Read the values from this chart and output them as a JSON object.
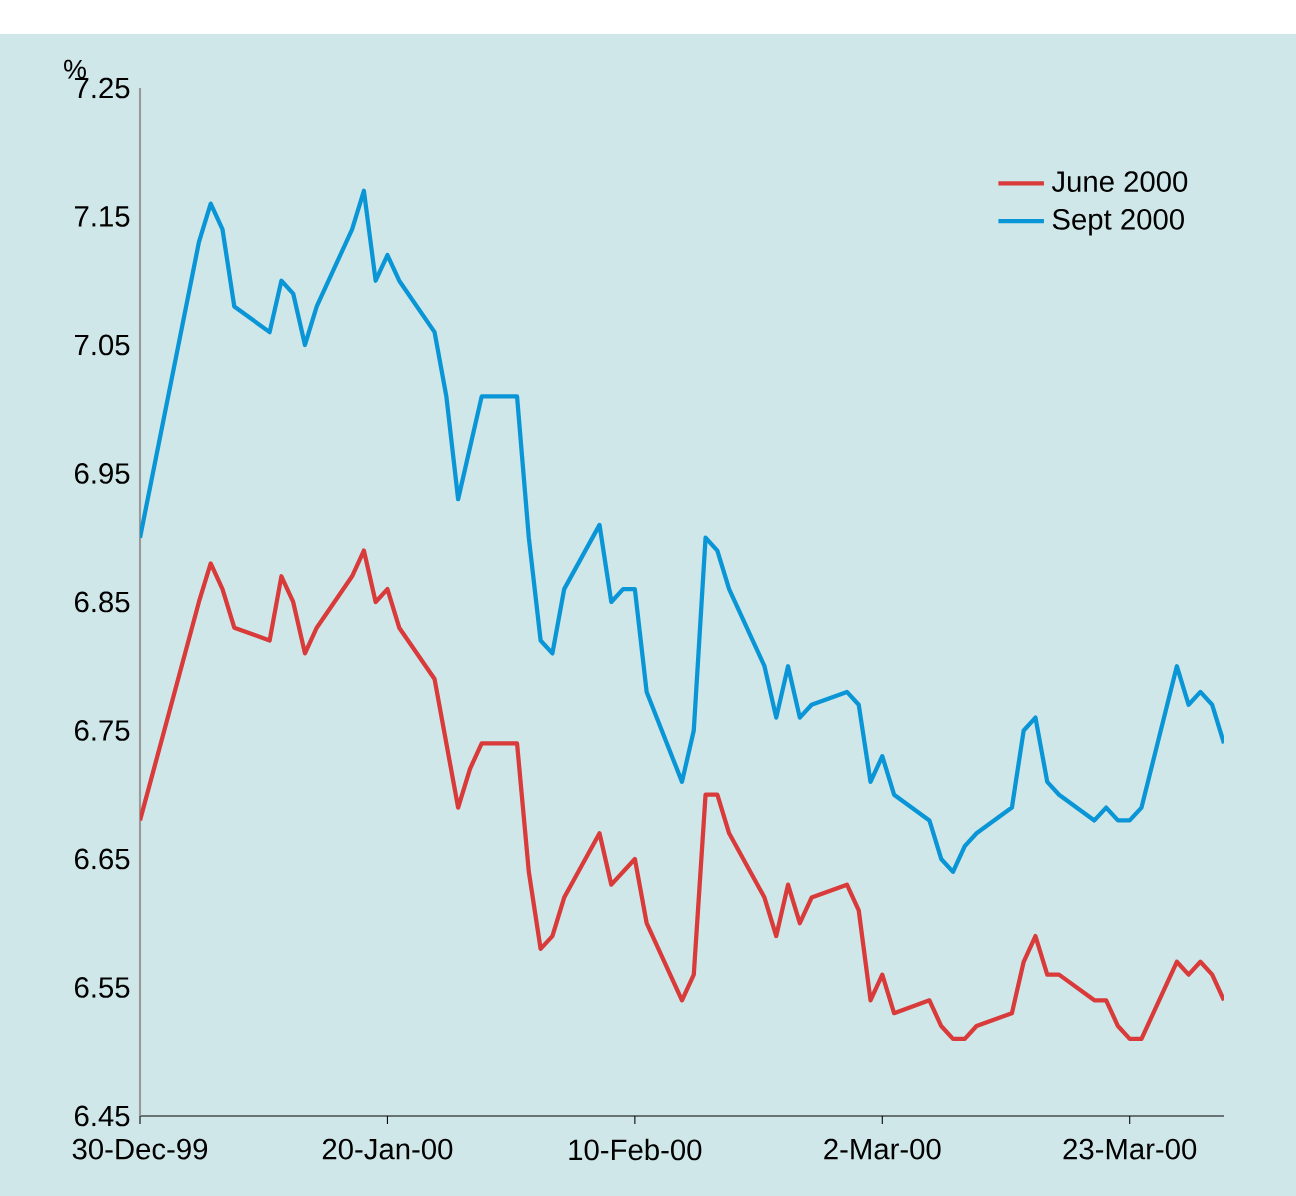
{
  "chart_data": {
    "type": "line",
    "ylabel": "%",
    "x": [
      "1999-12-30",
      "2000-01-04",
      "2000-01-05",
      "2000-01-06",
      "2000-01-07",
      "2000-01-10",
      "2000-01-11",
      "2000-01-12",
      "2000-01-13",
      "2000-01-14",
      "2000-01-17",
      "2000-01-18",
      "2000-01-19",
      "2000-01-20",
      "2000-01-21",
      "2000-01-24",
      "2000-01-25",
      "2000-01-26",
      "2000-01-27",
      "2000-01-28",
      "2000-01-31",
      "2000-02-01",
      "2000-02-02",
      "2000-02-03",
      "2000-02-04",
      "2000-02-07",
      "2000-02-08",
      "2000-02-09",
      "2000-02-10",
      "2000-02-11",
      "2000-02-14",
      "2000-02-15",
      "2000-02-16",
      "2000-02-17",
      "2000-02-18",
      "2000-02-21",
      "2000-02-22",
      "2000-02-23",
      "2000-02-24",
      "2000-02-25",
      "2000-02-28",
      "2000-02-29",
      "2000-03-01",
      "2000-03-02",
      "2000-03-03",
      "2000-03-06",
      "2000-03-07",
      "2000-03-08",
      "2000-03-09",
      "2000-03-10",
      "2000-03-13",
      "2000-03-14",
      "2000-03-15",
      "2000-03-16",
      "2000-03-17",
      "2000-03-20",
      "2000-03-21",
      "2000-03-22",
      "2000-03-23",
      "2000-03-24",
      "2000-03-27",
      "2000-03-28",
      "2000-03-29",
      "2000-03-30",
      "2000-03-31"
    ],
    "series": [
      {
        "name": "June 2000",
        "color": "#d93a3a",
        "values": [
          6.68,
          6.85,
          6.88,
          6.86,
          6.83,
          6.82,
          6.87,
          6.85,
          6.81,
          6.83,
          6.87,
          6.89,
          6.85,
          6.86,
          6.83,
          6.79,
          6.74,
          6.69,
          6.72,
          6.74,
          6.74,
          6.64,
          6.58,
          6.59,
          6.62,
          6.67,
          6.63,
          6.64,
          6.65,
          6.6,
          6.54,
          6.56,
          6.7,
          6.7,
          6.67,
          6.62,
          6.59,
          6.63,
          6.6,
          6.62,
          6.63,
          6.61,
          6.54,
          6.56,
          6.53,
          6.54,
          6.52,
          6.51,
          6.51,
          6.52,
          6.53,
          6.57,
          6.59,
          6.56,
          6.56,
          6.54,
          6.54,
          6.52,
          6.51,
          6.51,
          6.57,
          6.56,
          6.57,
          6.56,
          6.54
        ]
      },
      {
        "name": "Sept  2000",
        "color": "#0a96d6",
        "values": [
          6.9,
          7.13,
          7.16,
          7.14,
          7.08,
          7.06,
          7.1,
          7.09,
          7.05,
          7.08,
          7.14,
          7.17,
          7.1,
          7.12,
          7.1,
          7.06,
          7.01,
          6.93,
          6.97,
          7.01,
          7.01,
          6.9,
          6.82,
          6.81,
          6.86,
          6.91,
          6.85,
          6.86,
          6.86,
          6.78,
          6.71,
          6.75,
          6.9,
          6.89,
          6.86,
          6.8,
          6.76,
          6.8,
          6.76,
          6.77,
          6.78,
          6.77,
          6.71,
          6.73,
          6.7,
          6.68,
          6.65,
          6.64,
          6.66,
          6.67,
          6.69,
          6.75,
          6.76,
          6.71,
          6.7,
          6.68,
          6.69,
          6.68,
          6.68,
          6.69,
          6.8,
          6.77,
          6.78,
          6.77,
          6.74
        ]
      }
    ],
    "xlim": [
      "1999-12-30",
      "2000-03-31"
    ],
    "xticks": [
      {
        "value": "1999-12-30",
        "label": "30-Dec-99"
      },
      {
        "value": "2000-01-20",
        "label": "20-Jan-00"
      },
      {
        "value": "2000-02-10",
        "label": "10-Feb-00"
      },
      {
        "value": "2000-03-02",
        "label": "2-Mar-00"
      },
      {
        "value": "2000-03-23",
        "label": "23-Mar-00"
      }
    ],
    "ylim": [
      6.45,
      7.25
    ],
    "yticks": [
      6.45,
      6.55,
      6.65,
      6.75,
      6.85,
      6.95,
      7.05,
      7.15,
      7.25
    ],
    "legend": "top right"
  }
}
